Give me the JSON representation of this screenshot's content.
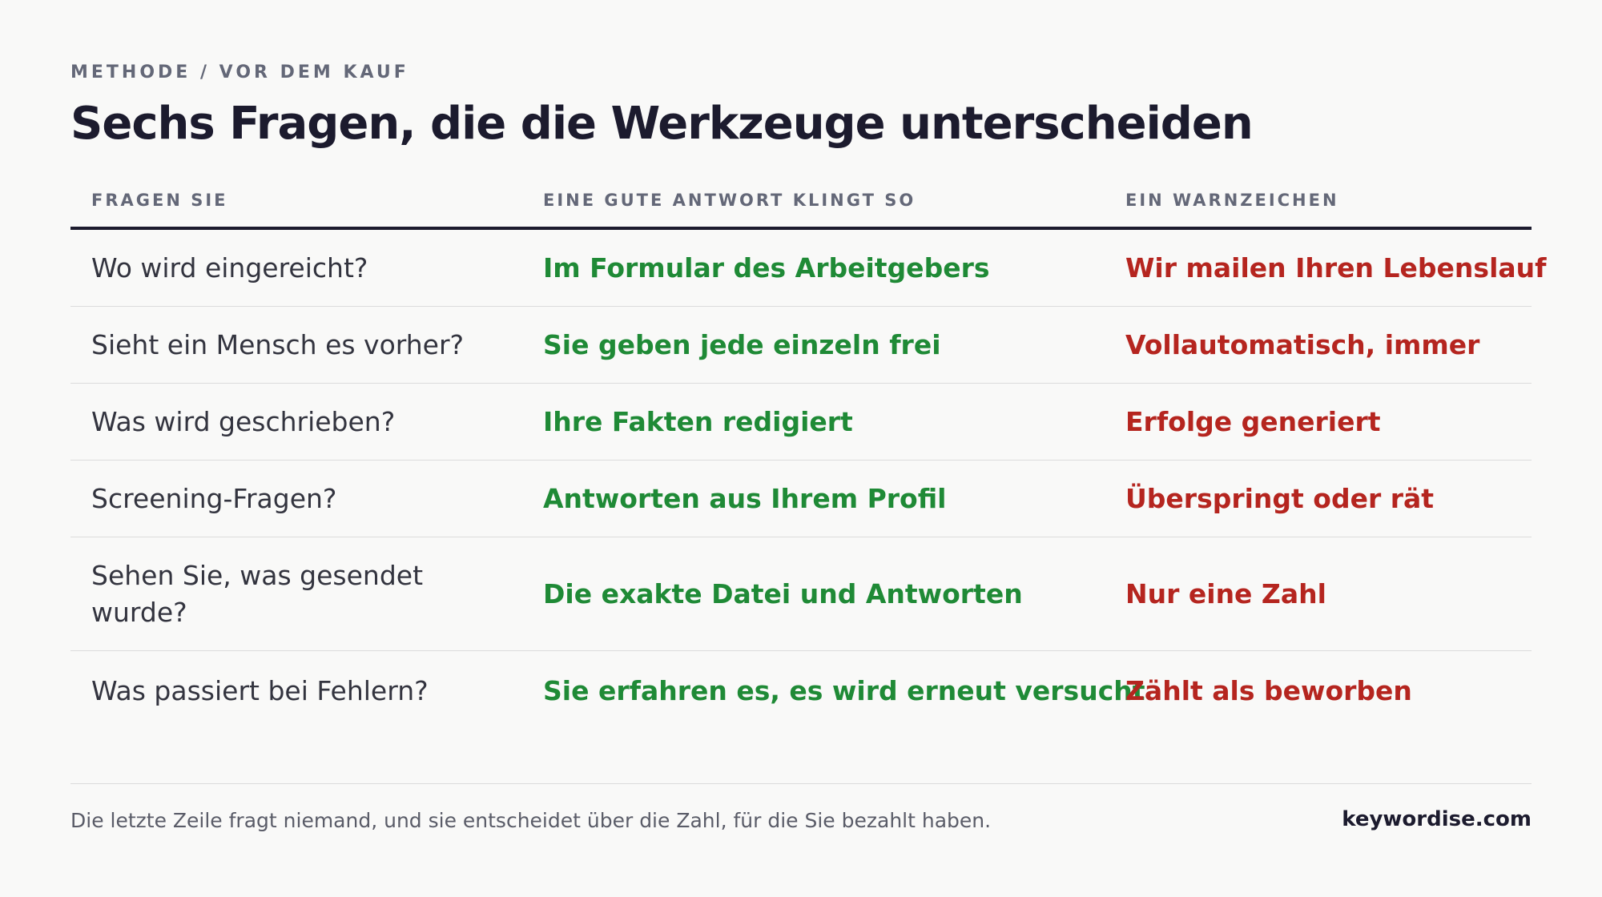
{
  "header": {
    "eyebrow": "METHODE / VOR DEM KAUF",
    "title": "Sechs Fragen, die die Werkzeuge unterscheiden"
  },
  "table": {
    "columns": [
      "FRAGEN SIE",
      "EINE GUTE ANTWORT KLINGT SO",
      "EIN WARNZEICHEN"
    ],
    "rows": [
      {
        "question": "Wo wird eingereicht?",
        "good": "Im Formular des Arbeitgebers",
        "bad": "Wir mailen Ihren Lebenslauf"
      },
      {
        "question": "Sieht ein Mensch es vorher?",
        "good": "Sie geben jede einzeln frei",
        "bad": "Vollautomatisch, immer"
      },
      {
        "question": "Was wird geschrieben?",
        "good": "Ihre Fakten redigiert",
        "bad": "Erfolge generiert"
      },
      {
        "question": "Screening-Fragen?",
        "good": "Antworten aus Ihrem Profil",
        "bad": "Überspringt oder rät"
      },
      {
        "question": "Sehen Sie, was gesendet wurde?",
        "good": "Die exakte Datei und Antworten",
        "bad": "Nur eine Zahl"
      },
      {
        "question": "Was passiert bei Fehlern?",
        "good": "Sie erfahren es, es wird erneut versucht",
        "bad": "Zählt als beworben"
      }
    ]
  },
  "footer": {
    "note": "Die letzte Zeile fragt niemand, und sie entscheidet über die Zahl, für die Sie bezahlt haben.",
    "brand": "keywordise.com"
  },
  "colors": {
    "good": "#1f8a36",
    "bad": "#b5251f",
    "heading": "#1c1b2e"
  }
}
